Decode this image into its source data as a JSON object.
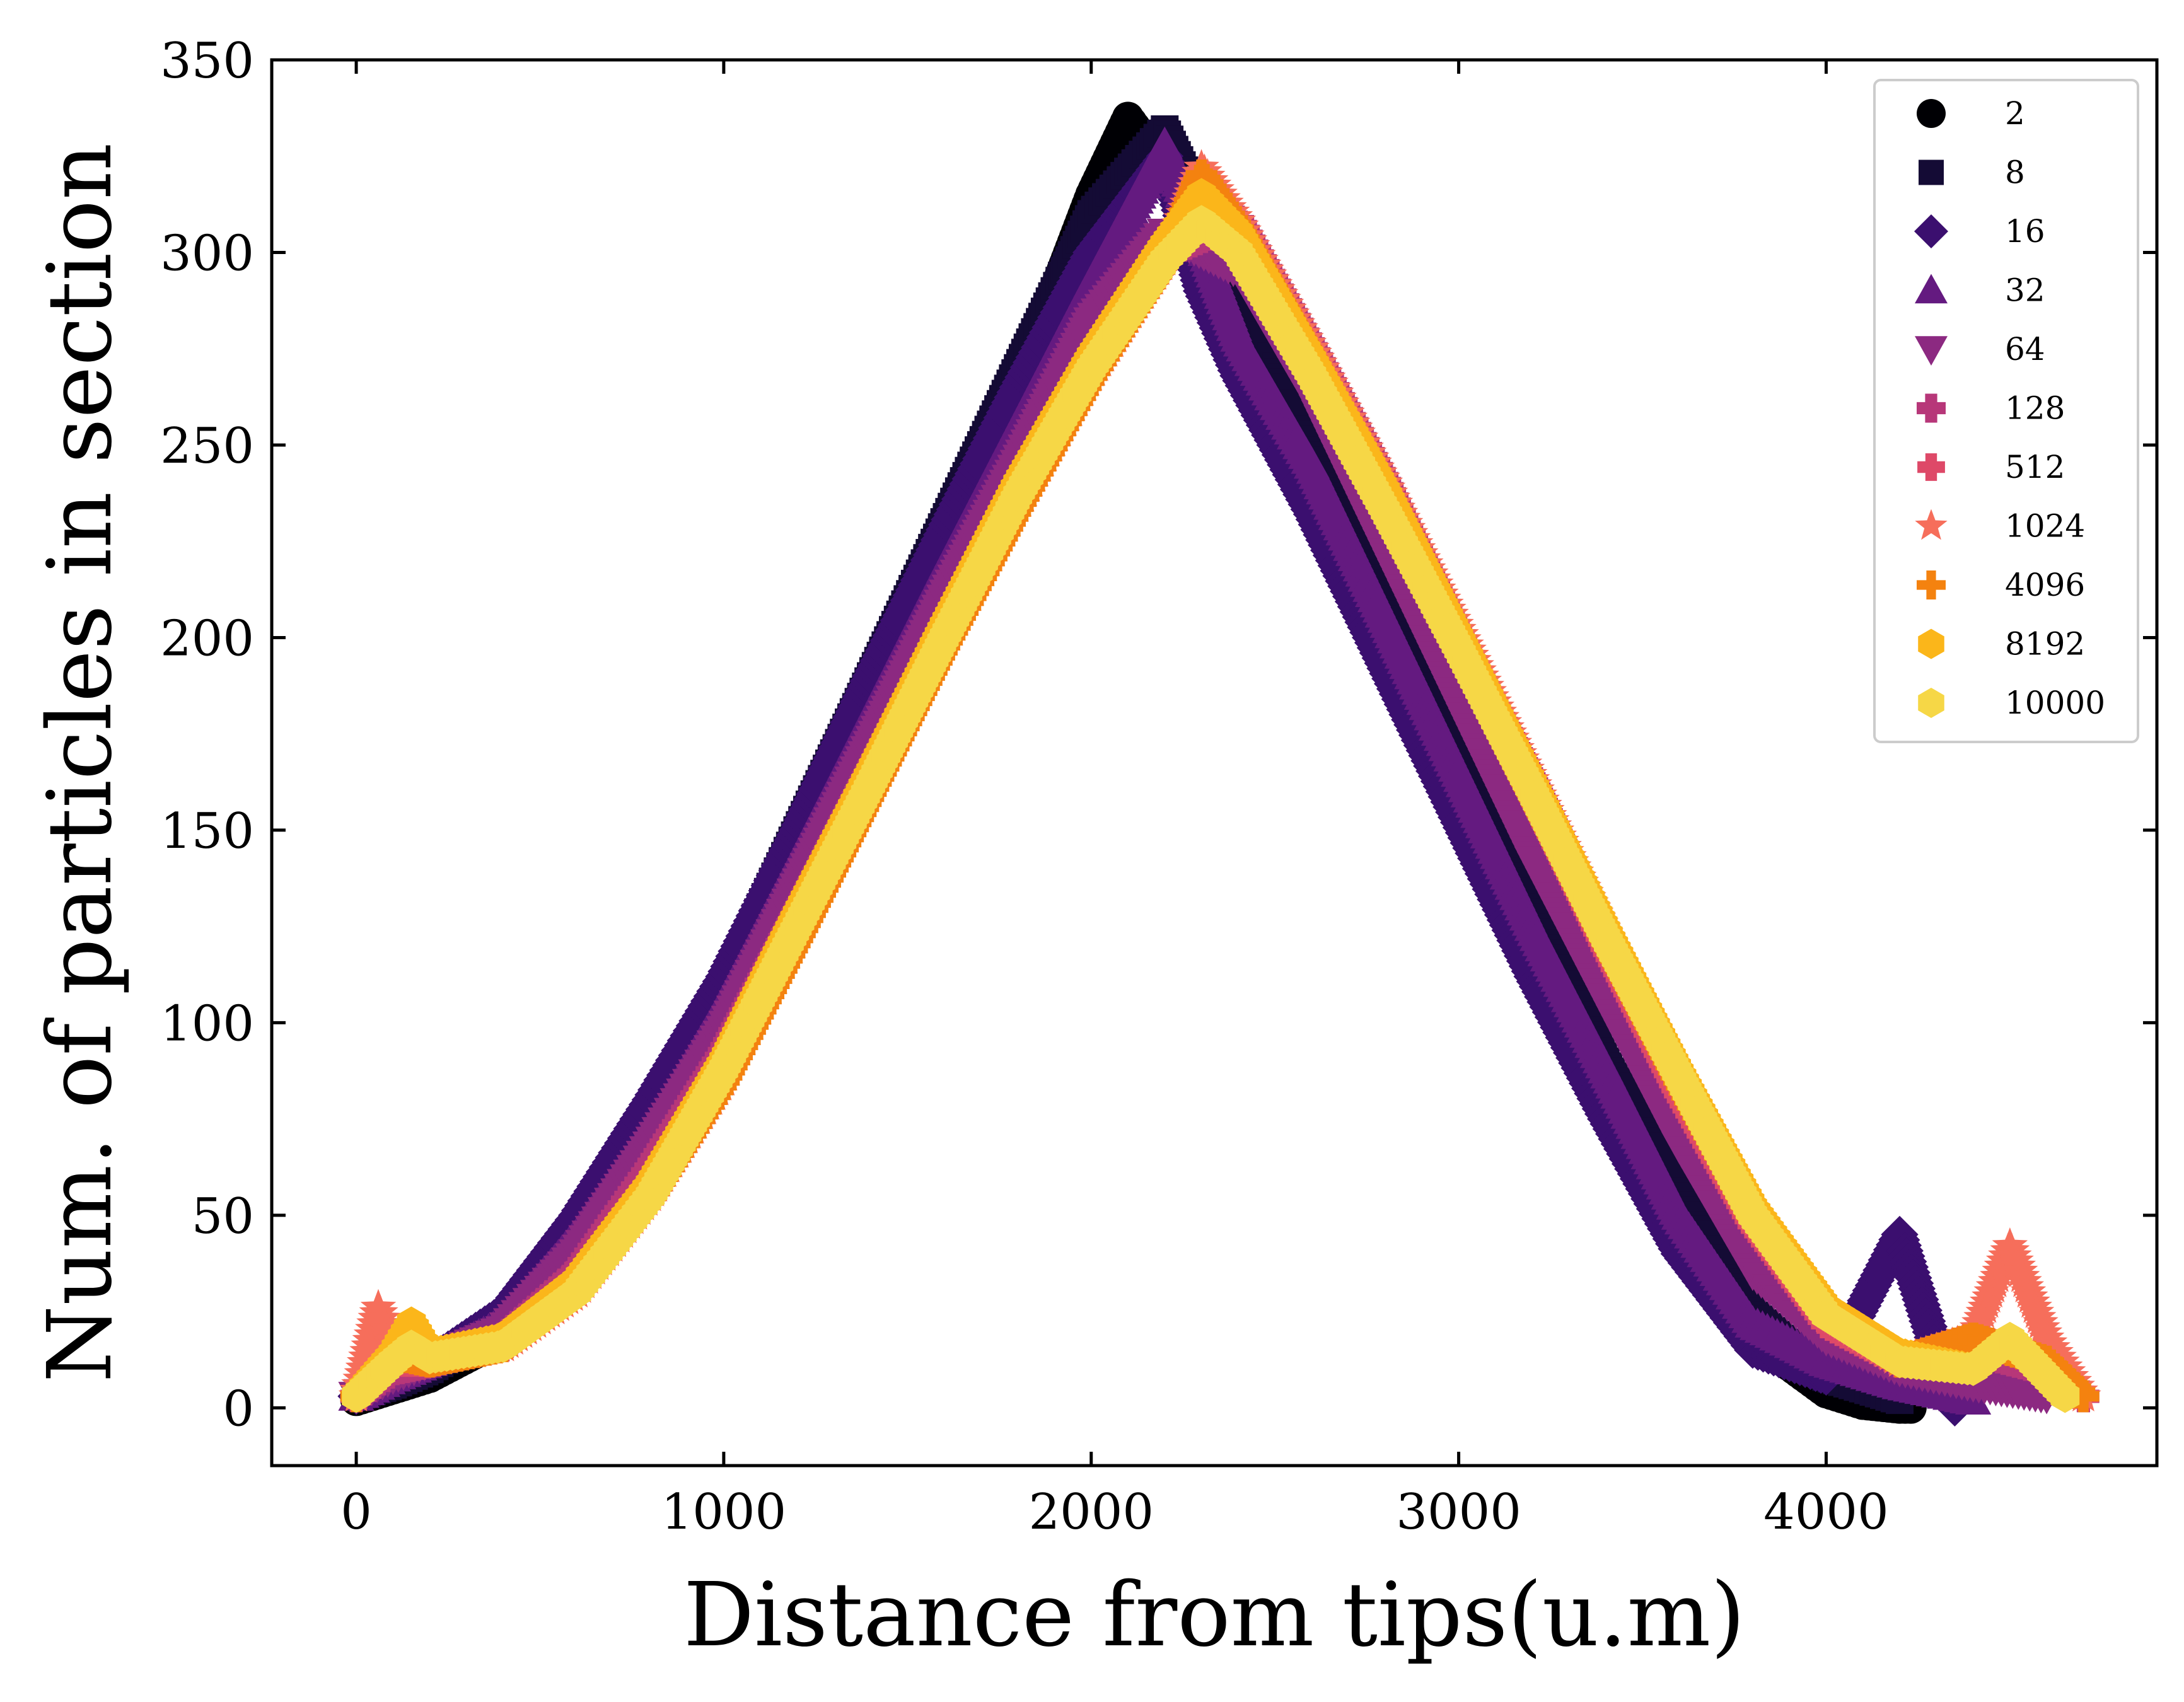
{
  "chart_data": {
    "type": "scatter",
    "xlabel": "Distance from tips(u.m)",
    "ylabel": "Num. of particles in section",
    "xlim": [
      -230,
      4900
    ],
    "ylim": [
      -15,
      350
    ],
    "x_ticks": [
      0,
      1000,
      2000,
      3000,
      4000
    ],
    "y_ticks": [
      0,
      50,
      100,
      150,
      200,
      250,
      300,
      350
    ],
    "legend_position": "top-right",
    "series": [
      {
        "name": "2",
        "marker": "circle",
        "color": "#000004",
        "x": [
          0,
          100,
          200,
          400,
          600,
          800,
          1000,
          1200,
          1400,
          1600,
          1800,
          2000,
          2100,
          2200,
          2400,
          2600,
          2800,
          3000,
          3200,
          3400,
          3600,
          3800,
          4000,
          4100,
          4200,
          4230
        ],
        "y": [
          2,
          5,
          8,
          18,
          40,
          70,
          105,
          145,
          185,
          225,
          265,
          315,
          335,
          322,
          285,
          245,
          205,
          165,
          125,
          85,
          48,
          18,
          4,
          1,
          0,
          0
        ]
      },
      {
        "name": "8",
        "marker": "square",
        "color": "#140b35",
        "x": [
          0,
          100,
          200,
          400,
          600,
          800,
          1000,
          1200,
          1400,
          1600,
          1800,
          2000,
          2200,
          2400,
          2600,
          2800,
          3000,
          3200,
          3400,
          3600,
          3800,
          4000,
          4200
        ],
        "y": [
          3,
          6,
          10,
          22,
          45,
          75,
          110,
          150,
          190,
          230,
          270,
          310,
          332,
          292,
          250,
          210,
          170,
          130,
          90,
          55,
          25,
          8,
          2
        ]
      },
      {
        "name": "16",
        "marker": "diamond",
        "color": "#3b0f6f",
        "x": [
          0,
          100,
          200,
          400,
          600,
          800,
          1000,
          1200,
          1400,
          1600,
          1800,
          2000,
          2200,
          2300,
          2400,
          2600,
          2800,
          3000,
          3200,
          3400,
          3600,
          3800,
          4000,
          4200,
          4350
        ],
        "y": [
          3,
          8,
          12,
          25,
          50,
          80,
          112,
          150,
          190,
          228,
          265,
          300,
          325,
          290,
          268,
          232,
          192,
          152,
          112,
          75,
          40,
          15,
          8,
          45,
          0
        ]
      },
      {
        "name": "32",
        "marker": "triangle-up",
        "color": "#641a80",
        "x": [
          0,
          100,
          200,
          400,
          600,
          800,
          1000,
          1200,
          1400,
          1600,
          1800,
          2000,
          2200,
          2400,
          2600,
          2800,
          3000,
          3200,
          3400,
          3600,
          3800,
          4000,
          4200,
          4400
        ],
        "y": [
          3,
          8,
          12,
          22,
          45,
          72,
          105,
          142,
          180,
          218,
          255,
          292,
          328,
          278,
          245,
          205,
          165,
          125,
          88,
          50,
          22,
          12,
          6,
          2
        ]
      },
      {
        "name": "64",
        "marker": "triangle-down",
        "color": "#8c2981",
        "x": [
          0,
          100,
          200,
          400,
          600,
          800,
          1000,
          1200,
          1400,
          1600,
          1800,
          2000,
          2200,
          2400,
          2600,
          2800,
          3000,
          3200,
          3400,
          3600,
          3800,
          4000,
          4200,
          4400,
          4600
        ],
        "y": [
          3,
          8,
          12,
          20,
          40,
          68,
          98,
          135,
          172,
          210,
          245,
          282,
          305,
          295,
          262,
          222,
          182,
          142,
          105,
          68,
          35,
          18,
          10,
          6,
          3
        ]
      },
      {
        "name": "128",
        "marker": "plus-filled",
        "color": "#b73779",
        "x": [
          0,
          100,
          200,
          400,
          600,
          800,
          1000,
          1200,
          1400,
          1600,
          1800,
          2000,
          2200,
          2400,
          2600,
          2800,
          3000,
          3200,
          3400,
          3600,
          3800,
          4000,
          4200,
          4400,
          4600,
          4700
        ],
        "y": [
          3,
          10,
          12,
          18,
          35,
          62,
          92,
          128,
          165,
          202,
          238,
          272,
          300,
          308,
          275,
          240,
          200,
          162,
          122,
          85,
          50,
          25,
          12,
          15,
          10,
          3
        ]
      },
      {
        "name": "512",
        "marker": "x-filled",
        "color": "#de4968",
        "x": [
          0,
          100,
          200,
          400,
          600,
          800,
          1000,
          1200,
          1400,
          1600,
          1800,
          2000,
          2200,
          2300,
          2400,
          2600,
          2800,
          3000,
          3200,
          3400,
          3600,
          3800,
          4000,
          4200,
          4400,
          4600,
          4700
        ],
        "y": [
          3,
          12,
          12,
          16,
          32,
          58,
          88,
          125,
          162,
          200,
          236,
          270,
          298,
          318,
          305,
          272,
          236,
          198,
          160,
          120,
          82,
          48,
          22,
          12,
          18,
          12,
          3
        ]
      },
      {
        "name": "1024",
        "marker": "star",
        "color": "#f66e5b",
        "x": [
          0,
          60,
          100,
          200,
          400,
          600,
          800,
          1000,
          1200,
          1400,
          1600,
          1800,
          2000,
          2200,
          2300,
          2400,
          2600,
          2800,
          3000,
          3200,
          3400,
          3600,
          3800,
          4000,
          4200,
          4400,
          4500,
          4600,
          4700
        ],
        "y": [
          3,
          26,
          16,
          12,
          16,
          30,
          55,
          85,
          122,
          160,
          198,
          234,
          268,
          298,
          322,
          308,
          275,
          240,
          202,
          163,
          123,
          85,
          50,
          25,
          12,
          18,
          42,
          18,
          3
        ]
      },
      {
        "name": "4096",
        "marker": "plus",
        "color": "#f4820f",
        "x": [
          0,
          100,
          200,
          400,
          600,
          800,
          1000,
          1200,
          1400,
          1600,
          1800,
          2000,
          2200,
          2300,
          2400,
          2600,
          2800,
          3000,
          3200,
          3400,
          3600,
          3800,
          4000,
          4200,
          4400,
          4600,
          4700
        ],
        "y": [
          3,
          14,
          12,
          16,
          30,
          55,
          85,
          122,
          160,
          198,
          234,
          268,
          298,
          320,
          306,
          272,
          236,
          198,
          160,
          122,
          85,
          50,
          25,
          12,
          18,
          12,
          3
        ]
      },
      {
        "name": "8192",
        "marker": "hexagon",
        "color": "#fbb61a",
        "x": [
          0,
          100,
          150,
          200,
          400,
          600,
          800,
          1000,
          1200,
          1400,
          1600,
          1800,
          2000,
          2200,
          2300,
          2400,
          2600,
          2800,
          3000,
          3200,
          3400,
          3600,
          3800,
          4000,
          4200,
          4400,
          4500,
          4650
        ],
        "y": [
          3,
          14,
          22,
          14,
          18,
          33,
          58,
          90,
          128,
          165,
          203,
          240,
          273,
          302,
          315,
          305,
          272,
          238,
          200,
          162,
          124,
          87,
          52,
          26,
          14,
          10,
          18,
          3
        ]
      },
      {
        "name": "10000",
        "marker": "hexagon",
        "color": "#f6d746",
        "x": [
          0,
          100,
          150,
          200,
          400,
          600,
          800,
          1000,
          1200,
          1400,
          1600,
          1800,
          2000,
          2200,
          2300,
          2400,
          2600,
          2800,
          3000,
          3200,
          3400,
          3600,
          3800,
          4000,
          4200,
          4400,
          4500,
          4650
        ],
        "y": [
          3,
          12,
          16,
          13,
          16,
          30,
          55,
          88,
          125,
          162,
          200,
          237,
          270,
          298,
          308,
          300,
          268,
          233,
          197,
          160,
          122,
          86,
          50,
          24,
          12,
          10,
          18,
          3
        ]
      }
    ]
  }
}
